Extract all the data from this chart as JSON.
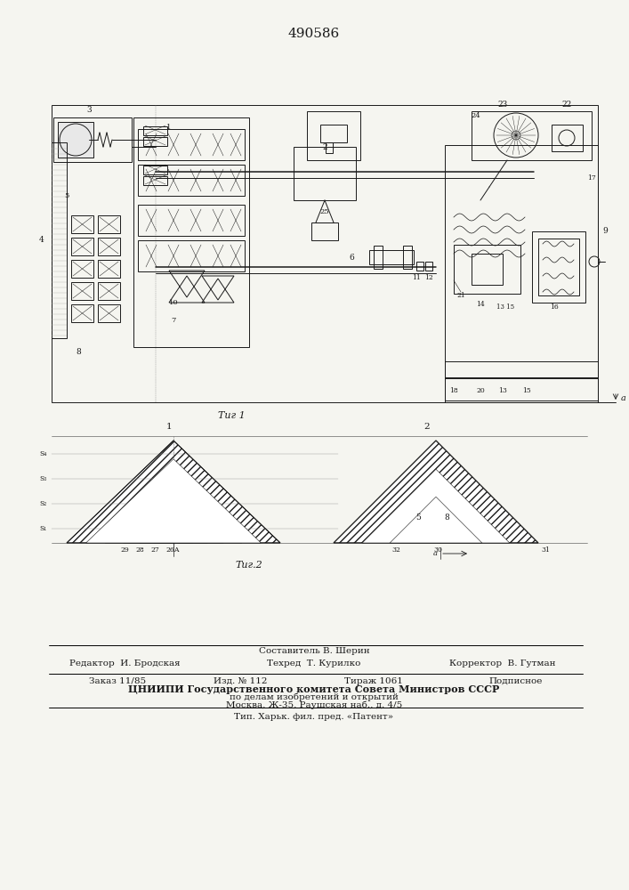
{
  "patent_number": "490586",
  "fig1_caption": "Τиг 1",
  "fig2_caption": "Τиг.2",
  "footer_line1": "Составитель В. Шерин",
  "footer_line2_left": "Редактор  И. Бродская",
  "footer_line2_mid": "Техред  Т. Курилко",
  "footer_line2_right": "Корректор  В. Гутман",
  "footer_line3_1": "Заказ 11/85",
  "footer_line3_2": "Изд. № 112",
  "footer_line3_3": "Тираж 1061",
  "footer_line3_4": "Подписное",
  "footer_line4": "ЦНИИПИ Государственного комитета Совета Министров СССР",
  "footer_line5": "по делам изобретений и открытий",
  "footer_line6": "Москва, Ж-35, Раушская наб., д. 4/5",
  "footer_line7": "Тип. Харьк. фил. пред. «Патент»",
  "bg_color": "#f5f5f0",
  "drawing_color": "#1a1a1a"
}
